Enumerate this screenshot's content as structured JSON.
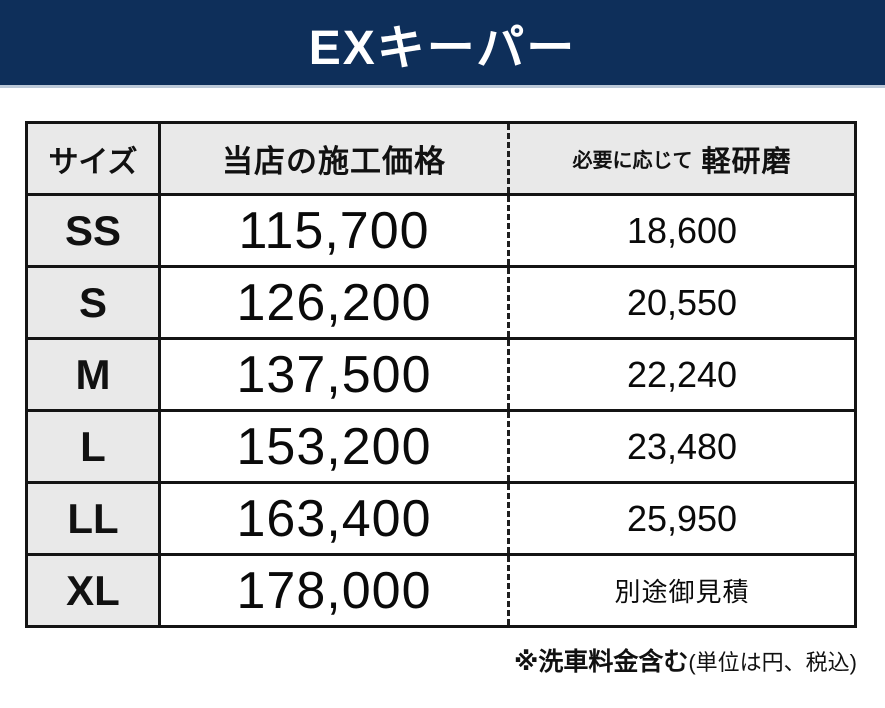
{
  "banner": {
    "title": "EXキーパー",
    "bg_color": "#0e2f5a",
    "underline_color": "#bcc9d8",
    "text_color": "#ffffff"
  },
  "price_table": {
    "header": {
      "size": "サイズ",
      "price": "当店の施工価格",
      "polish_prefix": "必要に応じて",
      "polish_main": "軽研磨"
    },
    "rows": [
      {
        "size": "SS",
        "price": "115,700",
        "polish": "18,600"
      },
      {
        "size": "S",
        "price": "126,200",
        "polish": "20,550"
      },
      {
        "size": "M",
        "price": "137,500",
        "polish": "22,240"
      },
      {
        "size": "L",
        "price": "153,200",
        "polish": "23,480"
      },
      {
        "size": "LL",
        "price": "163,400",
        "polish": "25,950"
      },
      {
        "size": "XL",
        "price": "178,000",
        "polish": "別途御見積"
      }
    ],
    "header_bg": "#e9e9e9",
    "size_col_bg": "#e9e9e9",
    "border_color": "#141414"
  },
  "footnote": {
    "bold": "※洗車料金含む",
    "regular": "(単位は円、税込)"
  },
  "chart_data": {
    "type": "table",
    "title": "EXキーパー",
    "columns": [
      "サイズ",
      "当店の施工価格",
      "必要に応じて 軽研磨"
    ],
    "rows": [
      [
        "SS",
        115700,
        18600
      ],
      [
        "S",
        126200,
        20550
      ],
      [
        "M",
        137500,
        22240
      ],
      [
        "L",
        153200,
        23480
      ],
      [
        "LL",
        163400,
        25950
      ],
      [
        "XL",
        178000,
        "別途御見積"
      ]
    ],
    "note": "※洗車料金含む(単位は円、税込)"
  }
}
